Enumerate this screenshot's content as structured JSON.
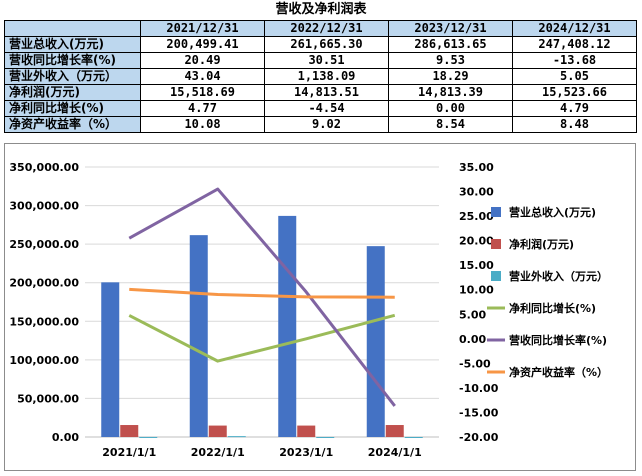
{
  "title": "营收及净利润表",
  "table": {
    "headers": [
      "",
      "2021/12/31",
      "2022/12/31",
      "2023/12/31",
      "2024/12/31"
    ],
    "rows": [
      {
        "label": "营业总收入(万元)",
        "values": [
          "200,499.41",
          "261,665.30",
          "286,613.65",
          "247,408.12"
        ]
      },
      {
        "label": "营收同比增长率(%)",
        "values": [
          "20.49",
          "30.51",
          "9.53",
          "-13.68"
        ]
      },
      {
        "label": "营业外收入（万元）",
        "values": [
          "43.04",
          "1,138.09",
          "18.29",
          "5.05"
        ]
      },
      {
        "label": "净利润(万元)",
        "values": [
          "15,518.69",
          "14,813.51",
          "14,813.39",
          "15,523.66"
        ]
      },
      {
        "label": "净利同比增长(%)",
        "values": [
          "4.77",
          "-4.54",
          "0.00",
          "4.79"
        ]
      },
      {
        "label": "净资产收益率（%）",
        "values": [
          "10.08",
          "9.02",
          "8.54",
          "8.48"
        ]
      }
    ]
  },
  "chart_data": {
    "type": "bar+line",
    "categories": [
      "2021/1/1",
      "2022/1/1",
      "2023/1/1",
      "2024/1/1"
    ],
    "bar_series": [
      {
        "name": "营业总收入(万元)",
        "values": [
          200499.41,
          261665.3,
          286613.65,
          247408.12
        ],
        "color": "#4472c4"
      },
      {
        "name": "净利润(万元)",
        "values": [
          15518.69,
          14813.51,
          14813.39,
          15523.66
        ],
        "color": "#c0504d"
      },
      {
        "name": "营业外收入（万元）",
        "values": [
          43.04,
          1138.09,
          18.29,
          5.05
        ],
        "color": "#4bacc6"
      }
    ],
    "line_series": [
      {
        "name": "净利同比增长(%)",
        "values": [
          4.77,
          -4.54,
          0.0,
          4.79
        ],
        "color": "#9bbb59"
      },
      {
        "name": "营收同比增长率(%)",
        "values": [
          20.49,
          30.51,
          9.53,
          -13.68
        ],
        "color": "#8064a2"
      },
      {
        "name": "净资产收益率（%）",
        "values": [
          10.08,
          9.02,
          8.54,
          8.48
        ],
        "color": "#f79646"
      }
    ],
    "y_left": {
      "min": 0,
      "max": 350000,
      "step": 50000,
      "labels": [
        "0.00",
        "50,000.00",
        "100,000.00",
        "150,000.00",
        "200,000.00",
        "250,000.00",
        "300,000.00",
        "350,000.00"
      ]
    },
    "y_right": {
      "min": -20,
      "max": 35,
      "step": 5,
      "labels": [
        "-20.00",
        "-15.00",
        "-10.00",
        "-5.00",
        "0.00",
        "5.00",
        "10.00",
        "15.00",
        "20.00",
        "25.00",
        "30.00",
        "35.00"
      ]
    },
    "legend_position": "right",
    "grid": true
  }
}
